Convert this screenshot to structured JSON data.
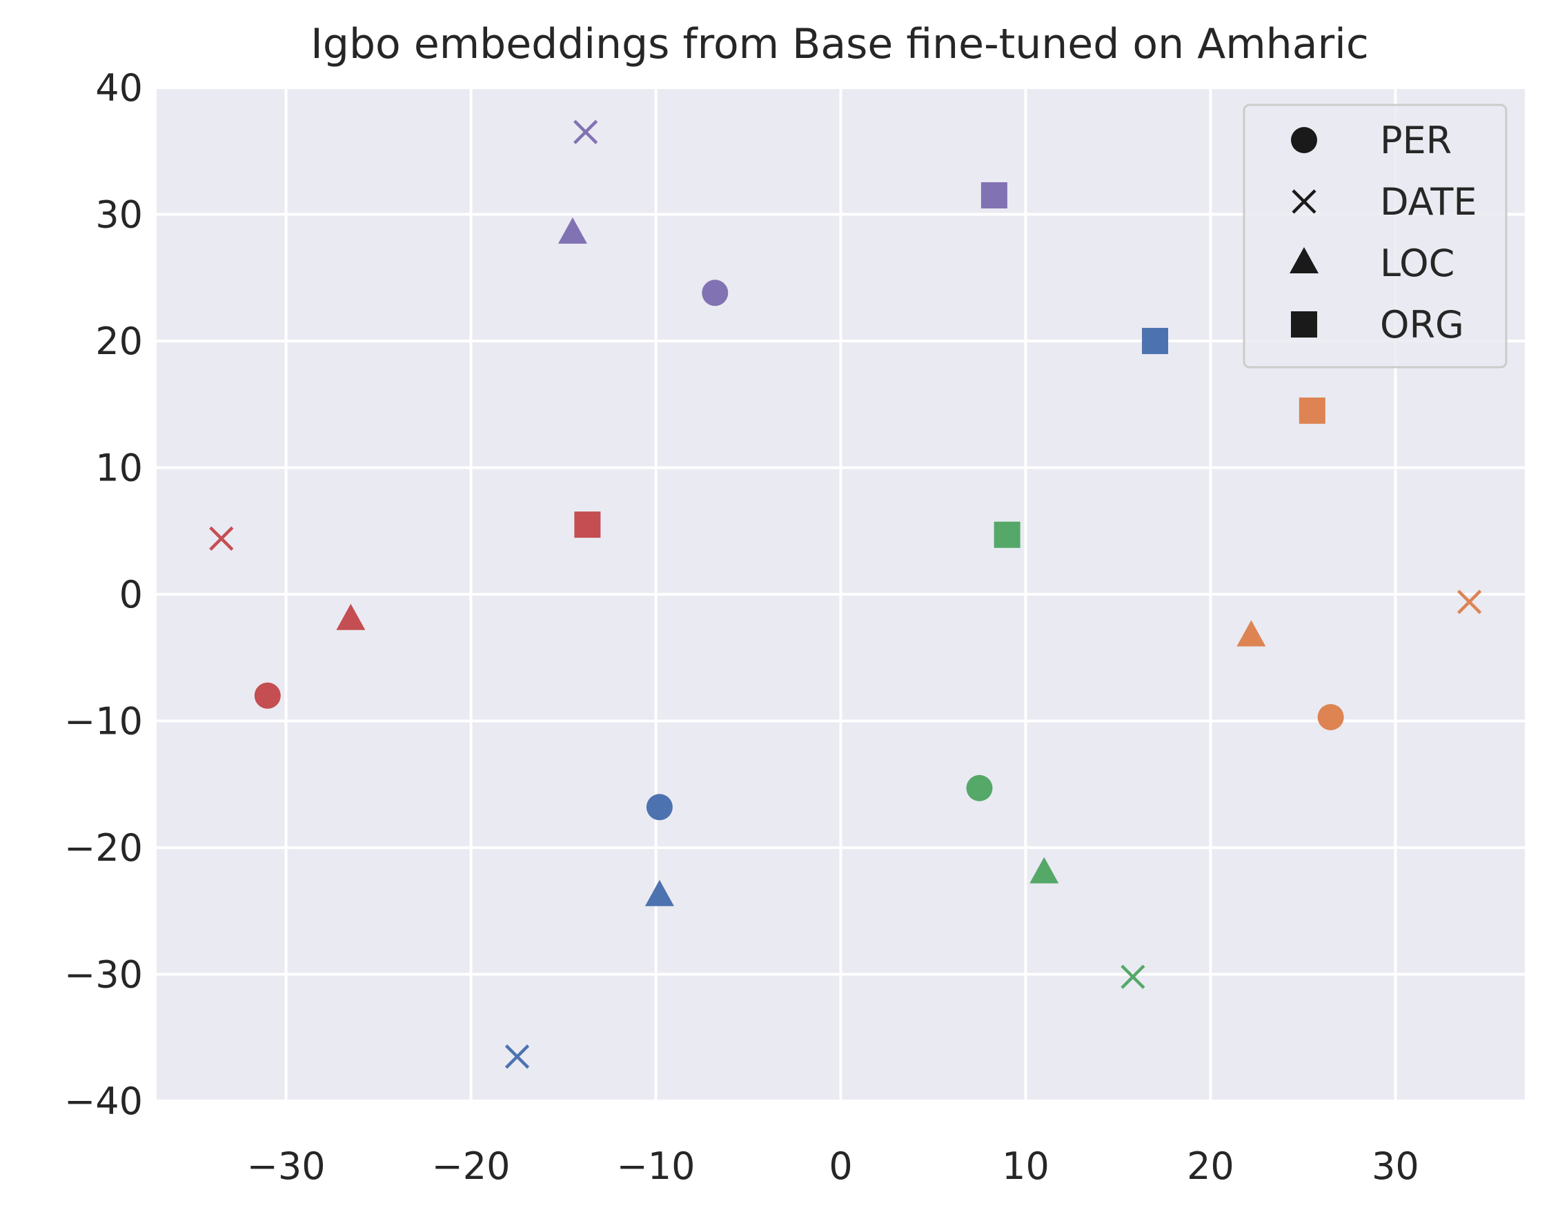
{
  "chart_data": {
    "type": "scatter",
    "title": "Igbo embeddings from Base fine-tuned on Amharic",
    "xlabel": "",
    "ylabel": "",
    "xlim": [
      -37,
      37
    ],
    "ylim": [
      -40,
      40
    ],
    "xticks": [
      -30,
      -20,
      -10,
      0,
      10,
      20,
      30
    ],
    "yticks": [
      40,
      30,
      20,
      10,
      0,
      -10,
      -20,
      -30,
      -40
    ],
    "xtick_labels": [
      "−30",
      "−20",
      "−10",
      "0",
      "10",
      "20",
      "30"
    ],
    "ytick_labels": [
      "40",
      "30",
      "20",
      "10",
      "0",
      "−10",
      "−20",
      "−30",
      "−40"
    ],
    "grid": true,
    "background": "#eaeaf2",
    "legend": {
      "position": "top-right",
      "entries": [
        {
          "label": "PER",
          "marker": "circle"
        },
        {
          "label": "DATE",
          "marker": "x"
        },
        {
          "label": "LOC",
          "marker": "triangle"
        },
        {
          "label": "ORG",
          "marker": "square"
        }
      ]
    },
    "points": [
      {
        "x": -31.0,
        "y": -8.0,
        "marker": "circle",
        "color": "#c44e52"
      },
      {
        "x": -33.5,
        "y": 4.4,
        "marker": "x",
        "color": "#c44e52"
      },
      {
        "x": -26.5,
        "y": -2.0,
        "marker": "triangle",
        "color": "#c44e52"
      },
      {
        "x": -13.7,
        "y": 5.5,
        "marker": "square",
        "color": "#c44e52"
      },
      {
        "x": -6.8,
        "y": 23.8,
        "marker": "circle",
        "color": "#8172b3"
      },
      {
        "x": -13.8,
        "y": 36.5,
        "marker": "x",
        "color": "#8172b3"
      },
      {
        "x": -14.5,
        "y": 28.5,
        "marker": "triangle",
        "color": "#8172b3"
      },
      {
        "x": 8.3,
        "y": 31.5,
        "marker": "square",
        "color": "#8172b3"
      },
      {
        "x": -9.8,
        "y": -16.8,
        "marker": "circle",
        "color": "#4c72b0"
      },
      {
        "x": -17.5,
        "y": -36.5,
        "marker": "x",
        "color": "#4c72b0"
      },
      {
        "x": -9.8,
        "y": -23.8,
        "marker": "triangle",
        "color": "#4c72b0"
      },
      {
        "x": 17.0,
        "y": 20.0,
        "marker": "square",
        "color": "#4c72b0"
      },
      {
        "x": 7.5,
        "y": -15.3,
        "marker": "circle",
        "color": "#55a868"
      },
      {
        "x": 15.8,
        "y": -30.2,
        "marker": "x",
        "color": "#55a868"
      },
      {
        "x": 11.0,
        "y": -22.0,
        "marker": "triangle",
        "color": "#55a868"
      },
      {
        "x": 9.0,
        "y": 4.7,
        "marker": "square",
        "color": "#55a868"
      },
      {
        "x": 26.5,
        "y": -9.7,
        "marker": "circle",
        "color": "#dd8452"
      },
      {
        "x": 34.0,
        "y": -0.6,
        "marker": "x",
        "color": "#dd8452"
      },
      {
        "x": 22.2,
        "y": -3.3,
        "marker": "triangle",
        "color": "#dd8452"
      },
      {
        "x": 25.5,
        "y": 14.5,
        "marker": "square",
        "color": "#dd8452"
      }
    ]
  }
}
